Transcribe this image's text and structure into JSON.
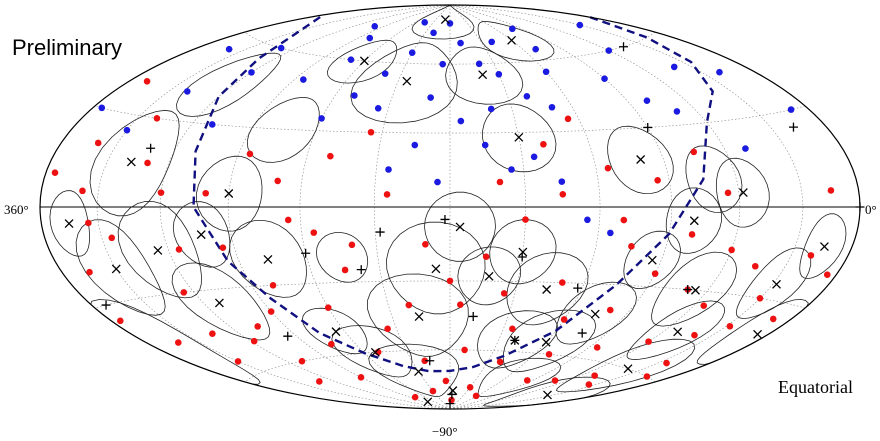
{
  "labels": {
    "preliminary": "Preliminary",
    "coordinate_system": "Equatorial"
  },
  "colors": {
    "red_events": "#ee1111",
    "blue_events": "#1a1ae0",
    "boundary": "#101080",
    "circles": "#222222",
    "grid": "#888888"
  },
  "chart_data": {
    "type": "scatter",
    "projection": "hammer-aitoff",
    "coordinate_system": "equatorial",
    "ra_range": [
      0,
      360
    ],
    "dec_range": [
      -90,
      90
    ],
    "ticks": {
      "left": "360°",
      "right": "0°",
      "bottom": "−90°"
    },
    "grid": true,
    "series": [
      {
        "marker": "filled-circle-red",
        "points": [
          [
            350,
            40
          ],
          [
            340,
            20
          ],
          [
            335,
            -5
          ],
          [
            345,
            -20
          ],
          [
            355,
            -35
          ],
          [
            320,
            30
          ],
          [
            310,
            15
          ],
          [
            300,
            5
          ],
          [
            295,
            -15
          ],
          [
            305,
            -30
          ],
          [
            315,
            -45
          ],
          [
            290,
            -60
          ],
          [
            270,
            -70
          ],
          [
            255,
            -55
          ],
          [
            240,
            -40
          ],
          [
            260,
            -30
          ],
          [
            275,
            -15
          ],
          [
            280,
            5
          ],
          [
            265,
            20
          ],
          [
            250,
            10
          ],
          [
            235,
            -10
          ],
          [
            225,
            -25
          ],
          [
            215,
            -50
          ],
          [
            200,
            -65
          ],
          [
            185,
            -75
          ],
          [
            175,
            -40
          ],
          [
            165,
            -20
          ],
          [
            155,
            -35
          ],
          [
            145,
            -50
          ],
          [
            170,
            -60
          ],
          [
            190,
            -15
          ],
          [
            205,
            5
          ],
          [
            130,
            -30
          ],
          [
            120,
            -45
          ],
          [
            110,
            -60
          ],
          [
            100,
            -40
          ],
          [
            90,
            -25
          ],
          [
            80,
            -10
          ],
          [
            70,
            -30
          ],
          [
            60,
            -50
          ],
          [
            50,
            -65
          ],
          [
            40,
            -45
          ],
          [
            30,
            -30
          ],
          [
            20,
            -15
          ],
          [
            10,
            -35
          ],
          [
            25,
            -55
          ],
          [
            45,
            -20
          ],
          [
            65,
            5
          ],
          [
            75,
            20
          ],
          [
            95,
            10
          ],
          [
            115,
            15
          ],
          [
            135,
            5
          ],
          [
            150,
            -5
          ],
          [
            160,
            10
          ],
          [
            140,
            25
          ],
          [
            125,
            35
          ],
          [
            215,
            30
          ],
          [
            230,
            20
          ],
          [
            245,
            -5
          ],
          [
            285,
            -45
          ],
          [
            330,
            -55
          ],
          [
            312,
            -68
          ],
          [
            260,
            -82
          ],
          [
            210,
            -80
          ],
          [
            150,
            -78
          ],
          [
            95,
            -72
          ],
          [
            70,
            -70
          ],
          [
            35,
            -68
          ],
          [
            15,
            -60
          ],
          [
            5,
            -20
          ],
          [
            355,
            10
          ],
          [
            342,
            -45
          ],
          [
            200,
            -40
          ],
          [
            180,
            -30
          ],
          [
            105,
            -15
          ],
          [
            85,
            -55
          ],
          [
            55,
            -35
          ],
          [
            15,
            5
          ],
          [
            325,
            -10
          ],
          [
            230,
            -60
          ],
          [
            175,
            -85
          ],
          [
            122,
            -82
          ],
          [
            298,
            -50
          ],
          [
            270,
            -40
          ],
          [
            220,
            -15
          ],
          [
            140,
            -65
          ],
          [
            110,
            -5
          ],
          [
            60,
            -15
          ],
          [
            28,
            -40
          ],
          [
            338,
            5
          ]
        ]
      },
      {
        "marker": "filled-circle-blue",
        "points": [
          [
            180,
            80
          ],
          [
            170,
            70
          ],
          [
            160,
            60
          ],
          [
            150,
            55
          ],
          [
            140,
            45
          ],
          [
            130,
            40
          ],
          [
            200,
            75
          ],
          [
            210,
            65
          ],
          [
            220,
            55
          ],
          [
            230,
            45
          ],
          [
            240,
            35
          ],
          [
            250,
            60
          ],
          [
            260,
            70
          ],
          [
            280,
            75
          ],
          [
            300,
            50
          ],
          [
            320,
            40
          ],
          [
            340,
            55
          ],
          [
            355,
            30
          ],
          [
            120,
            55
          ],
          [
            110,
            65
          ],
          [
            100,
            75
          ],
          [
            90,
            50
          ],
          [
            80,
            40
          ],
          [
            60,
            60
          ],
          [
            40,
            50
          ],
          [
            20,
            45
          ],
          [
            10,
            30
          ],
          [
            190,
            45
          ],
          [
            175,
            35
          ],
          [
            165,
            25
          ],
          [
            155,
            15
          ],
          [
            145,
            20
          ],
          [
            135,
            10
          ],
          [
            125,
            -5
          ],
          [
            115,
            -10
          ],
          [
            195,
            25
          ],
          [
            205,
            15
          ],
          [
            185,
            60
          ],
          [
            215,
            40
          ],
          [
            265,
            50
          ],
          [
            290,
            30
          ],
          [
            310,
            60
          ],
          [
            330,
            25
          ],
          [
            70,
            35
          ],
          [
            50,
            20
          ],
          [
            30,
            70
          ],
          [
            225,
            80
          ],
          [
            140,
            70
          ],
          [
            160,
            40
          ],
          [
            185,
            10
          ]
        ]
      },
      {
        "marker": "x-cross",
        "points": [
          [
            345,
            -5
          ],
          [
            330,
            -20
          ],
          [
            318,
            15
          ],
          [
            305,
            -15
          ],
          [
            292,
            -35
          ],
          [
            283,
            -10
          ],
          [
            270,
            5
          ],
          [
            257,
            -20
          ],
          [
            245,
            -50
          ],
          [
            232,
            -60
          ],
          [
            210,
            -70
          ],
          [
            196,
            -45
          ],
          [
            186,
            -25
          ],
          [
            176,
            -8
          ],
          [
            163,
            -28
          ],
          [
            150,
            -18
          ],
          [
            136,
            -33
          ],
          [
            120,
            -55
          ],
          [
            106,
            -42
          ],
          [
            94,
            -20
          ],
          [
            80,
            -5
          ],
          [
            66,
            -30
          ],
          [
            52,
            -45
          ],
          [
            40,
            -60
          ],
          [
            28,
            -25
          ],
          [
            15,
            -12
          ],
          [
            6,
            -40
          ],
          [
            190,
            82
          ],
          [
            205,
            52
          ],
          [
            240,
            60
          ],
          [
            160,
            55
          ],
          [
            150,
            28
          ],
          [
            120,
            70
          ],
          [
            100,
            18
          ],
          [
            58,
            5
          ],
          [
            35,
            -75
          ],
          [
            260,
            -85
          ],
          [
            175,
            -80
          ],
          [
            140,
            -55
          ]
        ]
      },
      {
        "marker": "plus",
        "points": [
          [
            0,
            0
          ],
          [
            352,
            -30
          ],
          [
            312,
            20
          ],
          [
            275,
            -50
          ],
          [
            240,
            -18
          ],
          [
            218,
            -25
          ],
          [
            196,
            -65
          ],
          [
            182,
            -5
          ],
          [
            168,
            -45
          ],
          [
            140,
            -55
          ],
          [
            122,
            -32
          ],
          [
            104,
            -50
          ],
          [
            90,
            30
          ],
          [
            70,
            -30
          ],
          [
            45,
            60
          ],
          [
            18,
            25
          ],
          [
            208,
            -10
          ],
          [
            180,
            -87
          ],
          [
            176,
            -82
          ],
          [
            150,
            -20
          ]
        ]
      },
      {
        "marker": "error-circle",
        "points": [
          [
            345,
            -5,
            10
          ],
          [
            330,
            -20,
            16
          ],
          [
            318,
            15,
            18
          ],
          [
            305,
            -15,
            17
          ],
          [
            292,
            -35,
            15
          ],
          [
            283,
            -10,
            12
          ],
          [
            270,
            5,
            14
          ],
          [
            257,
            -20,
            15
          ],
          [
            245,
            -50,
            10
          ],
          [
            232,
            -60,
            12
          ],
          [
            210,
            -70,
            13
          ],
          [
            196,
            -45,
            18
          ],
          [
            186,
            -25,
            19
          ],
          [
            176,
            -8,
            14
          ],
          [
            163,
            -28,
            12
          ],
          [
            150,
            -18,
            13
          ],
          [
            136,
            -33,
            15
          ],
          [
            120,
            -55,
            14
          ],
          [
            106,
            -42,
            13
          ],
          [
            94,
            -20,
            11
          ],
          [
            80,
            -5,
            12
          ],
          [
            66,
            -30,
            14
          ],
          [
            52,
            -45,
            12
          ],
          [
            40,
            -60,
            13
          ],
          [
            28,
            -25,
            12
          ],
          [
            15,
            -12,
            10
          ],
          [
            6,
            -40,
            12
          ],
          [
            190,
            82,
            10
          ],
          [
            205,
            52,
            18
          ],
          [
            240,
            60,
            10
          ],
          [
            160,
            55,
            13
          ],
          [
            150,
            28,
            14
          ],
          [
            120,
            70,
            10
          ],
          [
            100,
            18,
            13
          ],
          [
            58,
            5,
            12
          ],
          [
            35,
            -75,
            10
          ],
          [
            140,
            -55,
            13
          ],
          [
            305,
            45,
            13
          ],
          [
            355,
            -45,
            17
          ],
          [
            225,
            -20,
            10
          ],
          [
            255,
            30,
            13
          ],
          [
            110,
            -72,
            10
          ],
          [
            70,
            10,
            12
          ]
        ]
      }
    ],
    "boundary": {
      "style": "dashed",
      "points": [
        [
          0,
          70
        ],
        [
          15,
          60
        ],
        [
          25,
          50
        ],
        [
          40,
          40
        ],
        [
          60,
          30
        ],
        [
          75,
          10
        ],
        [
          90,
          -10
        ],
        [
          105,
          -30
        ],
        [
          120,
          -50
        ],
        [
          140,
          -62
        ],
        [
          160,
          -68
        ],
        [
          180,
          -70
        ],
        [
          200,
          -70
        ],
        [
          220,
          -67
        ],
        [
          240,
          -60
        ],
        [
          255,
          -50
        ],
        [
          265,
          -35
        ],
        [
          275,
          -20
        ],
        [
          285,
          0
        ],
        [
          290,
          20
        ],
        [
          300,
          40
        ],
        [
          310,
          55
        ],
        [
          325,
          65
        ],
        [
          345,
          70
        ],
        [
          360,
          72
        ]
      ]
    }
  }
}
